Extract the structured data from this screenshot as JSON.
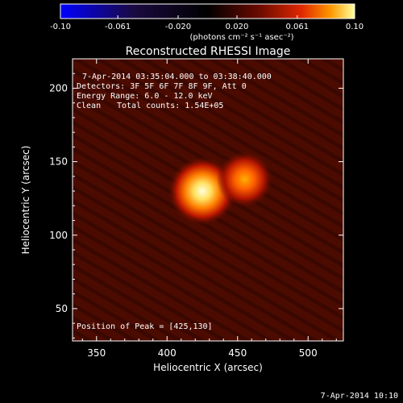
{
  "colorbar": {
    "ticks": [
      "-0.10",
      "-0.061",
      "-0.020",
      "0.020",
      "0.061",
      "0.10"
    ],
    "tick_values": [
      -0.1,
      -0.061,
      -0.02,
      0.02,
      0.061,
      0.1
    ],
    "range": [
      -0.1,
      0.1
    ],
    "unit_label": "(photons cm⁻² s⁻¹ asec⁻²)",
    "colors": [
      "#0000ff",
      "#1a0a40",
      "#000000",
      "#6e0b00",
      "#e02800",
      "#ff9a00",
      "#ffffa0"
    ]
  },
  "chart_data": {
    "type": "heatmap",
    "title": "Reconstructed RHESSI Image",
    "xlabel": "Heliocentric X (arcsec)",
    "ylabel": "Heliocentric Y (arcsec)",
    "xlim": [
      333,
      525
    ],
    "ylim": [
      28,
      220
    ],
    "x_ticks": [
      350,
      400,
      450,
      500
    ],
    "y_ticks": [
      50,
      100,
      150,
      200
    ],
    "background_color": "#4a0a00",
    "sources": [
      {
        "x": 425,
        "y": 130,
        "fwhm": 11,
        "intensity": 1.0
      },
      {
        "x": 455,
        "y": 138,
        "fwhm": 9,
        "intensity": 0.55
      }
    ],
    "annotations": {
      "time_range": "7-Apr-2014 03:35:04.000 to 03:38:40.000",
      "detectors": "Detectors: 3F 5F 6F 7F 8F 9F, Att 0",
      "energy": "Energy Range: 6.0 - 12.0 keV",
      "method": "Clean",
      "counts": "Total counts: 1.54E+05",
      "peak": "Position of Peak = [425,130]"
    }
  },
  "footer": {
    "timestamp": "7-Apr-2014 10:10"
  }
}
